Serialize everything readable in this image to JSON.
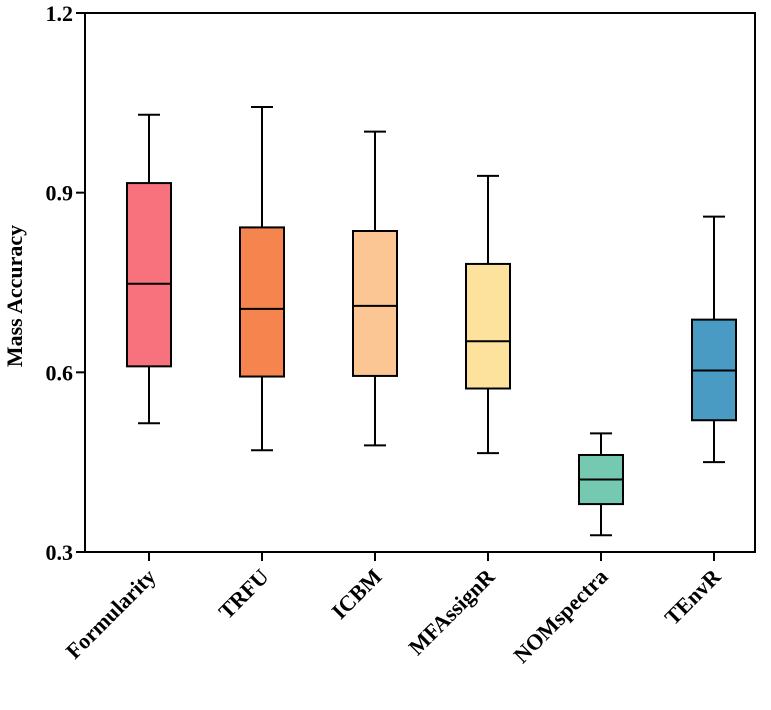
{
  "chart_data": {
    "type": "box",
    "title": "",
    "xlabel": "",
    "ylabel": "Mass Accuracy",
    "ylim": [
      0.3,
      1.2
    ],
    "yticks": [
      0.3,
      0.6,
      0.9,
      1.2
    ],
    "ytick_labels": [
      "0.3",
      "0.6",
      "0.9",
      "1.2"
    ],
    "grid": false,
    "categories": [
      "Formularity",
      "TRFU",
      "ICBM",
      "MFAssignR",
      "NOMspectra",
      "TEnvR"
    ],
    "series": [
      {
        "name": "Formularity",
        "whisker_low": 0.515,
        "q1": 0.61,
        "median": 0.748,
        "q3": 0.916,
        "whisker_high": 1.03,
        "color": "#F8727E"
      },
      {
        "name": "TRFU",
        "whisker_low": 0.47,
        "q1": 0.593,
        "median": 0.706,
        "q3": 0.842,
        "whisker_high": 1.043,
        "color": "#F5844F"
      },
      {
        "name": "ICBM",
        "whisker_low": 0.478,
        "q1": 0.594,
        "median": 0.711,
        "q3": 0.836,
        "whisker_high": 1.002,
        "color": "#FBC693"
      },
      {
        "name": "MFAssignR",
        "whisker_low": 0.465,
        "q1": 0.573,
        "median": 0.652,
        "q3": 0.781,
        "whisker_high": 0.928,
        "color": "#FDE29E"
      },
      {
        "name": "NOMspectra",
        "whisker_low": 0.328,
        "q1": 0.38,
        "median": 0.421,
        "q3": 0.462,
        "whisker_high": 0.498,
        "color": "#75C9B1"
      },
      {
        "name": "TEnvR",
        "whisker_low": 0.45,
        "q1": 0.52,
        "median": 0.603,
        "q3": 0.688,
        "whisker_high": 0.86,
        "color": "#4A9BC4"
      }
    ]
  }
}
